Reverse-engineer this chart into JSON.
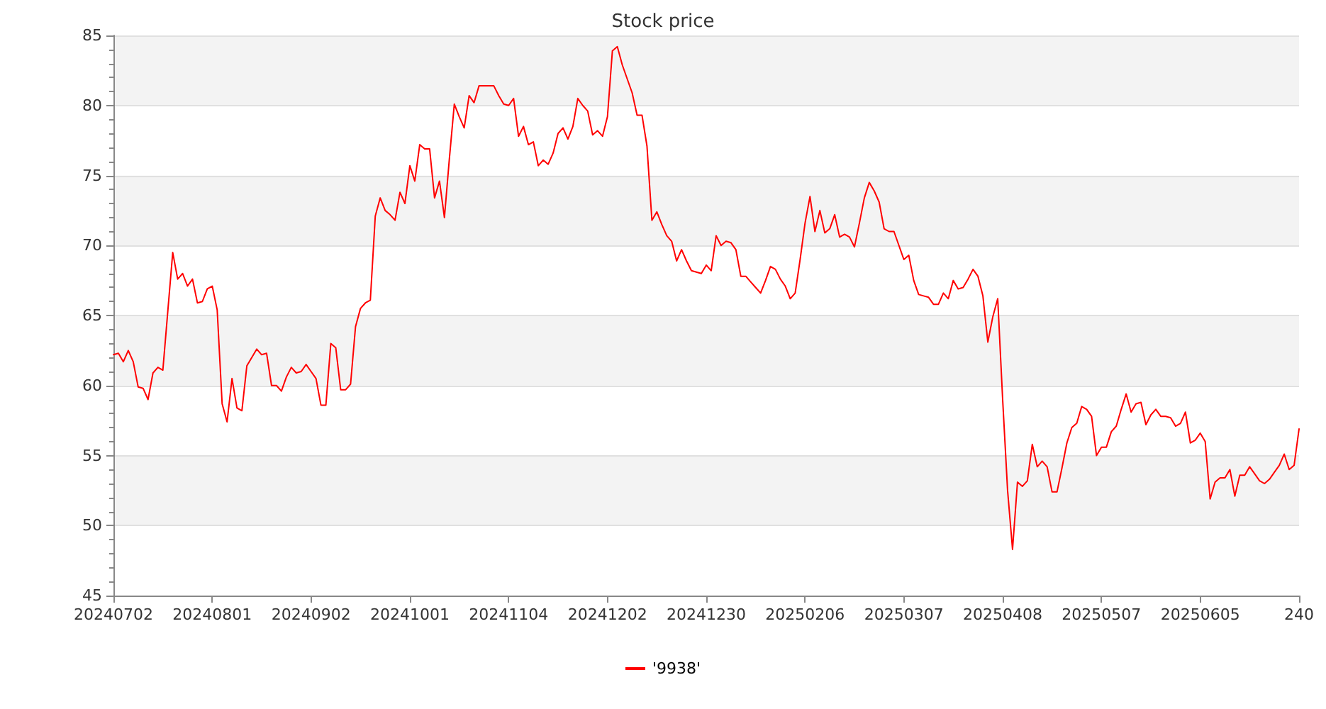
{
  "chart_data": {
    "type": "line",
    "title": "Stock price",
    "categories": [
      "20240702",
      null,
      null,
      null,
      null,
      null,
      null,
      null,
      null,
      null,
      null,
      null,
      null,
      null,
      null,
      null,
      null,
      null,
      null,
      null,
      "20240801",
      null,
      null,
      null,
      null,
      null,
      null,
      null,
      null,
      null,
      null,
      null,
      null,
      null,
      null,
      null,
      null,
      null,
      null,
      null,
      "20240902",
      null,
      null,
      null,
      null,
      null,
      null,
      null,
      null,
      null,
      null,
      null,
      null,
      null,
      null,
      null,
      null,
      null,
      null,
      null,
      "20241001",
      null,
      null,
      null,
      null,
      null,
      null,
      null,
      null,
      null,
      null,
      null,
      null,
      null,
      null,
      null,
      null,
      null,
      null,
      null,
      "20241104",
      null,
      null,
      null,
      null,
      null,
      null,
      null,
      null,
      null,
      null,
      null,
      null,
      null,
      null,
      null,
      null,
      null,
      null,
      null,
      "20241202",
      null,
      null,
      null,
      null,
      null,
      null,
      null,
      null,
      null,
      null,
      null,
      null,
      null,
      null,
      null,
      null,
      null,
      null,
      null,
      "20241230",
      null,
      null,
      null,
      null,
      null,
      null,
      null,
      null,
      null,
      null,
      null,
      null,
      null,
      null,
      null,
      null,
      null,
      null,
      null,
      "20250206",
      null,
      null,
      null,
      null,
      null,
      null,
      null,
      null,
      null,
      null,
      null,
      null,
      null,
      null,
      null,
      null,
      null,
      null,
      null,
      "20250307",
      null,
      null,
      null,
      null,
      null,
      null,
      null,
      null,
      null,
      null,
      null,
      null,
      null,
      null,
      null,
      null,
      null,
      null,
      null,
      "20250408",
      null,
      null,
      null,
      null,
      null,
      null,
      null,
      null,
      null,
      null,
      null,
      null,
      null,
      null,
      null,
      null,
      null,
      null,
      null,
      "20250507",
      null,
      null,
      null,
      null,
      null,
      null,
      null,
      null,
      null,
      null,
      null,
      null,
      null,
      null,
      null,
      null,
      null,
      null,
      null,
      "20250605",
      null,
      null,
      null,
      null,
      null,
      null,
      null,
      null,
      null,
      null,
      null,
      null,
      null,
      null,
      null,
      null,
      null,
      null,
      null,
      "240"
    ],
    "series": [
      {
        "name": "'9938'",
        "color": "#ff0000",
        "values": [
          62.2,
          62.3,
          61.7,
          62.5,
          61.7,
          59.9,
          59.8,
          59.0,
          60.9,
          61.3,
          61.1,
          65.3,
          69.5,
          67.6,
          68.0,
          67.1,
          67.6,
          65.9,
          66.0,
          66.9,
          67.1,
          65.4,
          58.7,
          57.4,
          60.5,
          58.4,
          58.2,
          61.4,
          62.0,
          62.6,
          62.2,
          62.3,
          60.0,
          60.0,
          59.6,
          60.6,
          61.3,
          60.9,
          61.0,
          61.5,
          61.0,
          60.5,
          58.6,
          58.6,
          63.0,
          62.7,
          59.7,
          59.7,
          60.1,
          64.2,
          65.5,
          65.9,
          66.1,
          72.1,
          73.4,
          72.5,
          72.2,
          71.8,
          73.8,
          73.0,
          75.7,
          74.6,
          77.2,
          76.9,
          76.9,
          73.4,
          74.6,
          72.0,
          76.2,
          80.1,
          79.2,
          78.4,
          80.7,
          80.2,
          81.4,
          81.4,
          81.4,
          81.4,
          80.7,
          80.1,
          80.0,
          80.5,
          77.8,
          78.5,
          77.2,
          77.4,
          75.7,
          76.1,
          75.8,
          76.6,
          78.0,
          78.4,
          77.6,
          78.5,
          80.5,
          80.0,
          79.6,
          77.9,
          78.2,
          77.8,
          79.2,
          83.9,
          84.2,
          82.9,
          81.9,
          80.9,
          79.3,
          79.3,
          77.1,
          71.8,
          72.4,
          71.5,
          70.7,
          70.3,
          68.9,
          69.7,
          68.9,
          68.2,
          68.1,
          68.0,
          68.6,
          68.2,
          70.7,
          70.0,
          70.3,
          70.2,
          69.7,
          67.8,
          67.8,
          67.4,
          67.0,
          66.6,
          67.5,
          68.5,
          68.3,
          67.6,
          67.1,
          66.2,
          66.6,
          69.0,
          71.6,
          73.5,
          71.0,
          72.5,
          70.9,
          71.2,
          72.2,
          70.6,
          70.8,
          70.6,
          69.9,
          71.6,
          73.4,
          74.5,
          73.9,
          73.1,
          71.2,
          71.0,
          71.0,
          70.0,
          69.0,
          69.3,
          67.5,
          66.5,
          66.4,
          66.3,
          65.8,
          65.8,
          66.6,
          66.2,
          67.5,
          66.9,
          67.0,
          67.6,
          68.3,
          67.8,
          66.4,
          63.1,
          64.9,
          66.2,
          59.0,
          52.5,
          48.3,
          53.1,
          52.8,
          53.2,
          55.8,
          54.2,
          54.6,
          54.2,
          52.4,
          52.4,
          54.1,
          55.9,
          57.0,
          57.3,
          58.5,
          58.3,
          57.8,
          55.0,
          55.6,
          55.6,
          56.7,
          57.1,
          58.3,
          59.4,
          58.1,
          58.7,
          58.8,
          57.2,
          57.9,
          58.3,
          57.8,
          57.8,
          57.7,
          57.1,
          57.3,
          58.1,
          55.9,
          56.1,
          56.6,
          56.0,
          51.9,
          53.1,
          53.4,
          53.4,
          54.0,
          52.1,
          53.6,
          53.6,
          54.2,
          53.7,
          53.2,
          53.0,
          53.3,
          53.8,
          54.3,
          55.1,
          54.0,
          54.3,
          56.9
        ]
      }
    ],
    "ylim": [
      45,
      85
    ],
    "yticks": [
      45,
      50,
      55,
      60,
      65,
      70,
      75,
      80,
      85
    ],
    "grid": "y",
    "legend": "bottom",
    "marker": "none",
    "line_style": "solid"
  }
}
